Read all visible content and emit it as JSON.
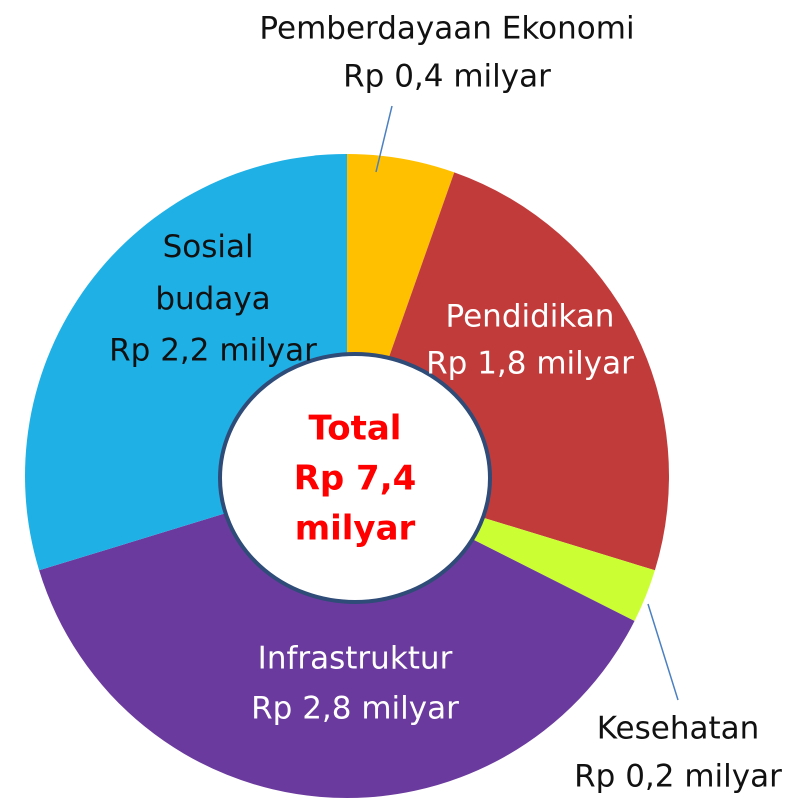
{
  "chart_data": {
    "type": "pie",
    "categories": [
      "Pemberdayaan Ekonomi",
      "Pendidikan",
      "Kesehatan",
      "Infrastruktur",
      "Sosial budaya"
    ],
    "values": [
      0.4,
      1.8,
      0.2,
      2.8,
      2.2
    ],
    "value_labels": [
      "Rp 0,4 milyar",
      "Rp 1,8 milyar",
      "Rp 0,2 milyar",
      "Rp 2,8 milyar",
      "Rp 2,2 milyar"
    ],
    "colors": [
      "#ffc000",
      "#c23b3b",
      "#ccff33",
      "#6b3a9e",
      "#1fb0e6"
    ],
    "center_label": [
      "Total",
      "Rp 7,4",
      "milyar"
    ]
  }
}
